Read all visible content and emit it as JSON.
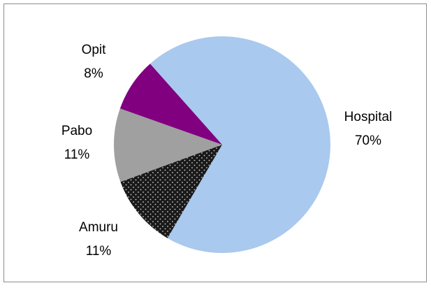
{
  "chart_data": {
    "type": "pie",
    "categories": [
      "Hospital",
      "Amuru",
      "Pabo",
      "Opit"
    ],
    "values": [
      70,
      11,
      11,
      8
    ],
    "value_labels": [
      "70%",
      "11%",
      "11%",
      "8%"
    ],
    "colors": [
      "#a9c9ee",
      "#1a1a1a",
      "#a0a0a0",
      "#800080"
    ],
    "patterns": [
      null,
      "dots",
      null,
      null
    ]
  }
}
